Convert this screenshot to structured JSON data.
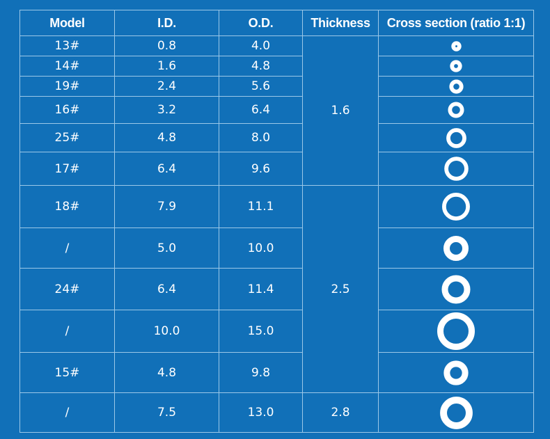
{
  "headers": {
    "model": "Model",
    "id": "I.D.",
    "od": "O.D.",
    "thickness": "Thickness",
    "cross": "Cross section (ratio 1:1)"
  },
  "thickness_groups": [
    "1.6",
    "2.5",
    "2.8"
  ],
  "rows": [
    {
      "model": "13#",
      "id": "0.8",
      "od": "4.0"
    },
    {
      "model": "14#",
      "id": "1.6",
      "od": "4.8"
    },
    {
      "model": "19#",
      "id": "2.4",
      "od": "5.6"
    },
    {
      "model": "16#",
      "id": "3.2",
      "od": "6.4"
    },
    {
      "model": "25#",
      "id": "4.8",
      "od": "8.0"
    },
    {
      "model": "17#",
      "id": "6.4",
      "od": "9.6"
    },
    {
      "model": "18#",
      "id": "7.9",
      "od": "11.1"
    },
    {
      "model": "/",
      "id": "5.0",
      "od": "10.0"
    },
    {
      "model": "24#",
      "id": "6.4",
      "od": "11.4"
    },
    {
      "model": "/",
      "id": "10.0",
      "od": "15.0"
    },
    {
      "model": "15#",
      "id": "4.8",
      "od": "9.8"
    },
    {
      "model": "/",
      "id": "7.5",
      "od": "13.0"
    }
  ],
  "colors": {
    "background": "#1170b8",
    "gridline": "#9cc8e8",
    "text": "#ffffff",
    "ring": "#ffffff"
  }
}
